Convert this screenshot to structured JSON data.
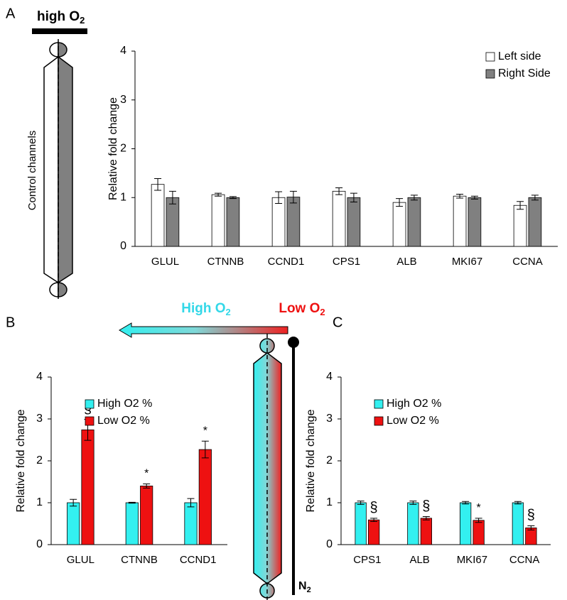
{
  "labels": {
    "panel_a": "A",
    "panel_b": "B",
    "panel_c": "C",
    "high_o2": {
      "text": "high O",
      "sub": "2"
    },
    "control_channels": "Control channels",
    "gradient_high": {
      "text": "High O",
      "sub": "2"
    },
    "gradient_low": {
      "text": "Low O",
      "sub": "2"
    },
    "n2": {
      "text": "N",
      "sub": "2"
    }
  },
  "chart_data": [
    {
      "type": "bar",
      "ylabel": "Relative fold change",
      "categories": [
        "GLUL",
        "CTNNB",
        "CCND1",
        "CPS1",
        "ALB",
        "MKI67",
        "CCNA"
      ],
      "series": [
        {
          "name": "Left side",
          "color": "#ffffff",
          "values": [
            1.27,
            1.06,
            1.0,
            1.13,
            0.9,
            1.03,
            0.84
          ],
          "errors": [
            0.12,
            0.03,
            0.12,
            0.07,
            0.08,
            0.04,
            0.08
          ]
        },
        {
          "name": "Right Side",
          "color": "#808080",
          "values": [
            1.0,
            1.0,
            1.01,
            1.0,
            1.0,
            1.0,
            1.0
          ],
          "errors": [
            0.13,
            0.02,
            0.12,
            0.09,
            0.05,
            0.03,
            0.05
          ]
        }
      ],
      "ylim": [
        0,
        4
      ],
      "yticks": [
        0,
        1,
        2,
        3,
        4
      ],
      "legend": "top-right"
    },
    {
      "type": "bar",
      "ylabel": "Relative fold change",
      "categories": [
        "GLUL",
        "CTNNB",
        "CCND1"
      ],
      "series": [
        {
          "name": "High O2 %",
          "color": "#33f0f0",
          "values": [
            1.0,
            1.0,
            1.0
          ],
          "errors": [
            0.08,
            0.01,
            0.1
          ]
        },
        {
          "name": "Low O2 %",
          "color": "#ee1111",
          "values": [
            2.74,
            1.4,
            2.27
          ],
          "errors": [
            0.25,
            0.05,
            0.2
          ],
          "markers": [
            "§",
            "*",
            "*"
          ]
        }
      ],
      "ylim": [
        0,
        4
      ],
      "yticks": [
        0,
        1,
        2,
        3,
        4
      ],
      "legend": "top-left"
    },
    {
      "type": "bar",
      "ylabel": "Relative fold change",
      "categories": [
        "CPS1",
        "ALB",
        "MKI67",
        "CCNA"
      ],
      "series": [
        {
          "name": "High O2 %",
          "color": "#33f0f0",
          "values": [
            1.0,
            1.0,
            1.0,
            1.0
          ],
          "errors": [
            0.04,
            0.04,
            0.03,
            0.03
          ]
        },
        {
          "name": "Low O2 %",
          "color": "#ee1111",
          "values": [
            0.59,
            0.63,
            0.58,
            0.4
          ],
          "errors": [
            0.04,
            0.04,
            0.05,
            0.05
          ],
          "markers": [
            "§",
            "§",
            "*",
            "§"
          ]
        }
      ],
      "ylim": [
        0,
        4
      ],
      "yticks": [
        0,
        1,
        2,
        3,
        4
      ],
      "legend": "top-left"
    }
  ]
}
